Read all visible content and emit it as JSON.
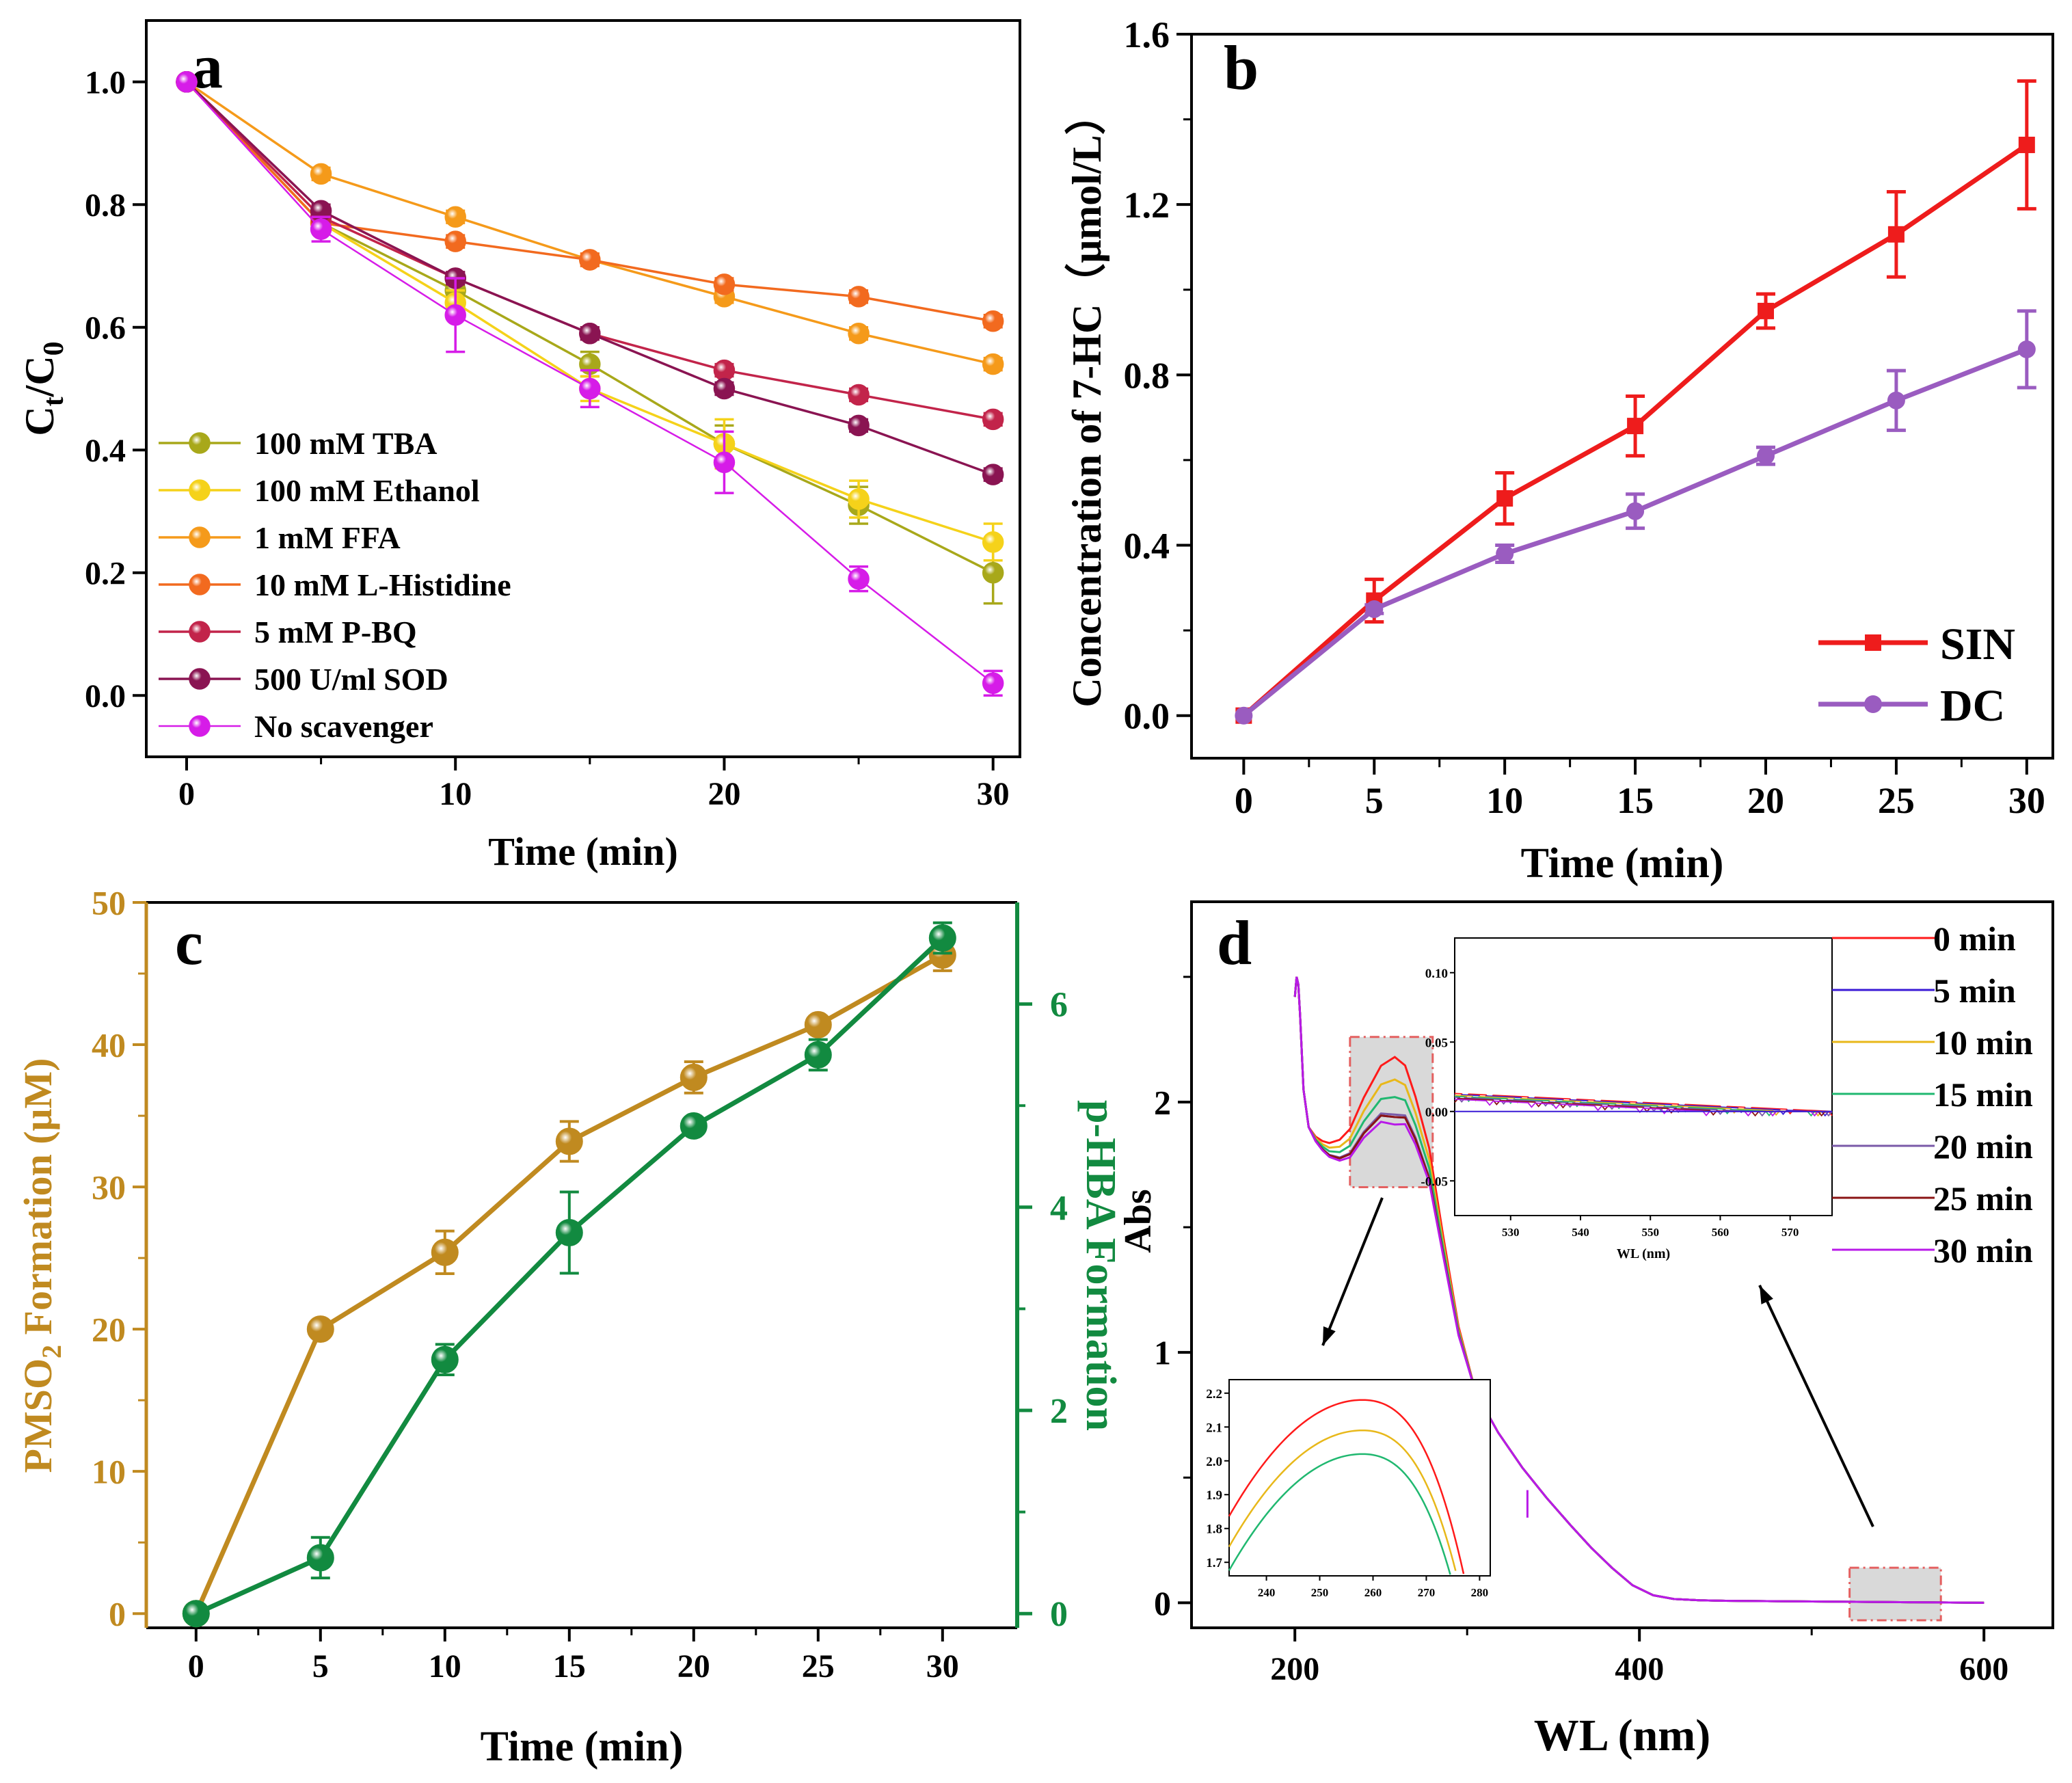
{
  "colors": {
    "tba": "#a8a81a",
    "ethanol": "#f5d21a",
    "ffa": "#f59a1a",
    "histidine": "#f26a1f",
    "pbq": "#c2244a",
    "sod": "#8a1452",
    "none": "#d61ce8",
    "sin": "#ee1c1c",
    "dc": "#9a5cc0",
    "pmso2": "#c08a20",
    "phba": "#128a40",
    "d0": "#ff1a1a",
    "d5": "#3a1ad6",
    "d10": "#e8b81a",
    "d15": "#20b870",
    "d20": "#7a5aa8",
    "d25": "#8a1414",
    "d30": "#b81ae8"
  },
  "chart_data": [
    {
      "panel": "a",
      "type": "line",
      "xlabel": "Time (min)",
      "ylabel_main": "C",
      "ylabel_sub1": "t",
      "ylabel_mid": "/C",
      "ylabel_sub2": "0",
      "xlim": [
        -1.5,
        31
      ],
      "ylim": [
        -0.1,
        1.1
      ],
      "xticks": [
        "0",
        "10",
        "20",
        "30"
      ],
      "yticks": [
        "0.0",
        "0.2",
        "0.4",
        "0.6",
        "0.8",
        "1.0"
      ],
      "x": [
        0,
        5,
        10,
        15,
        20,
        25,
        30
      ],
      "series": [
        {
          "name": "100 mM TBA",
          "color_key": "tba",
          "values": [
            1.0,
            0.77,
            0.66,
            0.54,
            0.41,
            0.31,
            0.2
          ],
          "err": [
            0,
            0.01,
            0.02,
            0.02,
            0.03,
            0.03,
            0.05
          ]
        },
        {
          "name": "100 mM Ethanol",
          "color_key": "ethanol",
          "values": [
            1.0,
            0.77,
            0.64,
            0.5,
            0.41,
            0.32,
            0.25
          ],
          "err": [
            0,
            0.01,
            0.02,
            0.02,
            0.04,
            0.03,
            0.03
          ]
        },
        {
          "name": "1 mM FFA",
          "color_key": "ffa",
          "values": [
            1.0,
            0.85,
            0.78,
            0.71,
            0.65,
            0.59,
            0.54
          ],
          "err": [
            0,
            0.01,
            0.01,
            0.01,
            0.01,
            0.01,
            0.01
          ]
        },
        {
          "name": "10 mM L-Histidine",
          "color_key": "histidine",
          "values": [
            1.0,
            0.77,
            0.74,
            0.71,
            0.67,
            0.65,
            0.61
          ],
          "err": [
            0,
            0.01,
            0.01,
            0.01,
            0.01,
            0.01,
            0.01
          ]
        },
        {
          "name": "5 mM P-BQ",
          "color_key": "pbq",
          "values": [
            1.0,
            0.78,
            0.68,
            0.59,
            0.53,
            0.49,
            0.45
          ],
          "err": [
            0,
            0.01,
            0.01,
            0.01,
            0.01,
            0.01,
            0.01
          ]
        },
        {
          "name": "500 U/ml SOD",
          "color_key": "sod",
          "values": [
            1.0,
            0.79,
            0.68,
            0.59,
            0.5,
            0.44,
            0.36
          ],
          "err": [
            0,
            0.01,
            0.01,
            0.01,
            0.01,
            0.01,
            0.01
          ]
        },
        {
          "name": "No scavenger",
          "color_key": "none",
          "values": [
            1.0,
            0.76,
            0.62,
            0.5,
            0.38,
            0.19,
            0.02
          ],
          "err": [
            0,
            0.02,
            0.06,
            0.03,
            0.05,
            0.02,
            0.02
          ]
        }
      ]
    },
    {
      "panel": "b",
      "type": "line",
      "xlabel": "Time (min)",
      "ylabel": "Concentration of 7-HC（μmol/L）",
      "xlim": [
        -2,
        31
      ],
      "ylim": [
        -0.1,
        1.6
      ],
      "xticks": [
        "0",
        "5",
        "10",
        "15",
        "20",
        "25",
        "30"
      ],
      "yticks": [
        "0.0",
        "0.4",
        "0.8",
        "1.2",
        "1.6"
      ],
      "x": [
        0,
        5,
        10,
        15,
        20,
        25,
        30
      ],
      "series": [
        {
          "name": "SIN",
          "color_key": "sin",
          "marker": "square",
          "values": [
            0.0,
            0.27,
            0.51,
            0.68,
            0.95,
            1.13,
            1.34
          ],
          "err": [
            0,
            0.05,
            0.06,
            0.07,
            0.04,
            0.1,
            0.15
          ]
        },
        {
          "name": "DC",
          "color_key": "dc",
          "marker": "circle",
          "values": [
            0.0,
            0.25,
            0.38,
            0.48,
            0.61,
            0.74,
            0.86
          ],
          "err": [
            0,
            0.01,
            0.02,
            0.04,
            0.02,
            0.07,
            0.09
          ]
        }
      ]
    },
    {
      "panel": "c",
      "type": "line",
      "xlabel": "Time (min)",
      "ylabel_left_main": "PMSO",
      "ylabel_left_sub": "2",
      "ylabel_left_tail": " Formation (μM)",
      "ylabel_right": "p-HBA Formation",
      "xlim": [
        -2,
        33
      ],
      "ylim_left": [
        -1,
        50
      ],
      "ylim_right": [
        -0.14,
        7.0
      ],
      "xticks": [
        "0",
        "5",
        "10",
        "15",
        "20",
        "25",
        "30"
      ],
      "yticks_left": [
        "0",
        "10",
        "20",
        "30",
        "40",
        "50"
      ],
      "yticks_right": [
        "0",
        "2",
        "4",
        "6"
      ],
      "x": [
        0,
        5,
        10,
        15,
        20,
        25,
        30
      ],
      "series": [
        {
          "name": "PMSO2",
          "axis": "left",
          "color_key": "pmso2",
          "values": [
            0.0,
            20.0,
            25.4,
            33.2,
            37.7,
            41.4,
            46.3
          ],
          "err": [
            0,
            0.3,
            1.5,
            1.4,
            1.1,
            0.5,
            1.1
          ]
        },
        {
          "name": "p-HBA",
          "axis": "right",
          "color_key": "phba",
          "values": [
            0.0,
            0.55,
            2.5,
            3.75,
            4.8,
            5.5,
            6.65
          ],
          "err": [
            0,
            0.2,
            0.15,
            0.4,
            0.05,
            0.15,
            0.15
          ]
        }
      ]
    },
    {
      "panel": "d",
      "type": "line",
      "xlabel": "WL (nm)",
      "ylabel": "Abs",
      "xlim": [
        140,
        640
      ],
      "ylim": [
        -0.1,
        2.8
      ],
      "xticks": [
        "200",
        "400",
        "600"
      ],
      "yticks": [
        "0",
        "1",
        "2"
      ],
      "legend": [
        {
          "name": "0 min",
          "color_key": "d0",
          "peak": 2.18
        },
        {
          "name": "5 min",
          "color_key": "d5",
          "peak": 1.94
        },
        {
          "name": "10 min",
          "color_key": "d10",
          "peak": 2.09
        },
        {
          "name": "15 min",
          "color_key": "d15",
          "peak": 2.02
        },
        {
          "name": "20 min",
          "color_key": "d20",
          "peak": 1.95
        },
        {
          "name": "25 min",
          "color_key": "d25",
          "peak": 1.94
        },
        {
          "name": "30 min",
          "color_key": "d30",
          "peak": 1.91
        }
      ],
      "shape": {
        "wl": [
          200,
          201,
          202,
          203,
          205,
          208,
          212,
          216,
          220,
          226,
          232,
          240,
          250,
          258,
          264,
          270,
          278,
          286,
          295,
          305,
          318,
          332,
          346,
          360,
          372,
          384,
          396,
          408,
          420,
          435,
          450,
          480,
          520,
          560,
          600
        ],
        "rel": [
          2.42,
          2.5,
          2.47,
          2.35,
          2.05,
          1.9,
          1.86,
          1.84,
          1.83,
          1.84,
          1.88,
          2.0,
          2.12,
          2.15,
          2.12,
          2.0,
          1.8,
          1.46,
          1.1,
          0.84,
          0.68,
          0.54,
          0.42,
          0.31,
          0.22,
          0.14,
          0.07,
          0.03,
          0.015,
          0.01,
          0.008,
          0.006,
          0.004,
          0.002,
          0.0
        ]
      },
      "inset_peak": {
        "xlim": [
          233,
          282
        ],
        "ylim": [
          1.66,
          2.24
        ],
        "xticks": [
          "240",
          "250",
          "260",
          "270",
          "280"
        ],
        "yticks": [
          "1.7",
          "1.8",
          "1.9",
          "2.0",
          "2.1",
          "2.2"
        ]
      },
      "inset_tail": {
        "xlim": [
          522,
          576
        ],
        "ylim": [
          -0.075,
          0.125
        ],
        "xticks": [
          "530",
          "540",
          "550",
          "560",
          "570"
        ],
        "yticks": [
          "0.10",
          "0.05",
          "0.00",
          "-0.05"
        ],
        "xlabel": "WL (nm)"
      }
    }
  ]
}
